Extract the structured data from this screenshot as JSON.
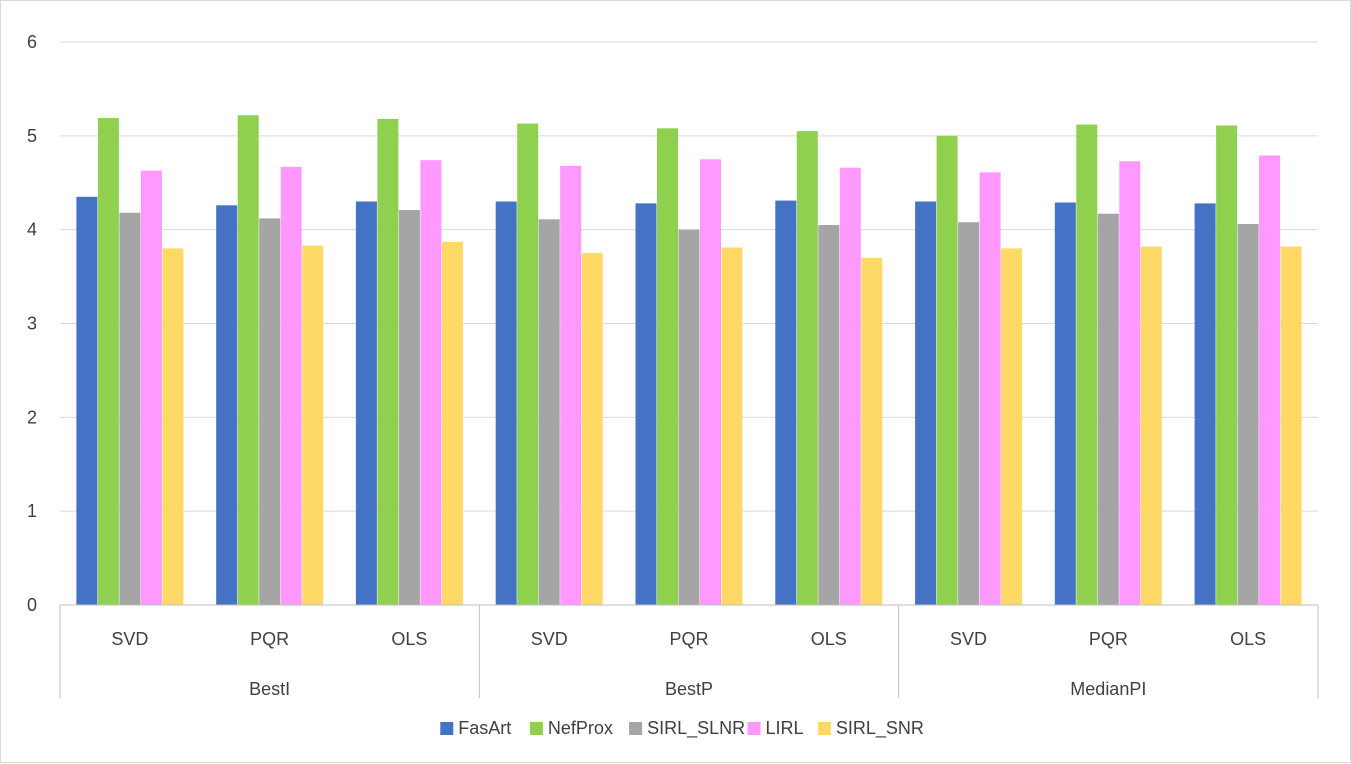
{
  "chart_data": {
    "type": "bar",
    "title": "",
    "xlabel": "",
    "ylabel": "",
    "ylim": [
      0,
      6
    ],
    "yticks": [
      "0",
      "1",
      "2",
      "3",
      "4",
      "5",
      "6"
    ],
    "grid": true,
    "legend_position": "bottom",
    "groups": [
      {
        "name": "BestI",
        "categories": [
          "SVD",
          "PQR",
          "OLS"
        ]
      },
      {
        "name": "BestP",
        "categories": [
          "SVD",
          "PQR",
          "OLS"
        ]
      },
      {
        "name": "MedianPI",
        "categories": [
          "SVD",
          "PQR",
          "OLS"
        ]
      }
    ],
    "categories": [
      "SVD",
      "PQR",
      "OLS",
      "SVD",
      "PQR",
      "OLS",
      "SVD",
      "PQR",
      "OLS"
    ],
    "series": [
      {
        "name": "FasArt",
        "color": "#4472c4",
        "values": [
          4.35,
          4.26,
          4.3,
          4.3,
          4.28,
          4.31,
          4.3,
          4.29,
          4.28
        ]
      },
      {
        "name": "NefProx",
        "color": "#8fd14f",
        "values": [
          5.19,
          5.22,
          5.18,
          5.13,
          5.08,
          5.05,
          5.0,
          5.12,
          5.11
        ]
      },
      {
        "name": "SIRL_SLNR",
        "color": "#a5a5a5",
        "values": [
          4.18,
          4.12,
          4.21,
          4.11,
          4.0,
          4.05,
          4.08,
          4.17,
          4.06
        ]
      },
      {
        "name": "LIRL",
        "color": "#ff99ff",
        "values": [
          4.63,
          4.67,
          4.74,
          4.68,
          4.75,
          4.66,
          4.61,
          4.73,
          4.79
        ]
      },
      {
        "name": "SIRL_SNR",
        "color": "#ffd966",
        "values": [
          3.8,
          3.83,
          3.87,
          3.75,
          3.81,
          3.7,
          3.8,
          3.82,
          3.82
        ]
      }
    ]
  }
}
